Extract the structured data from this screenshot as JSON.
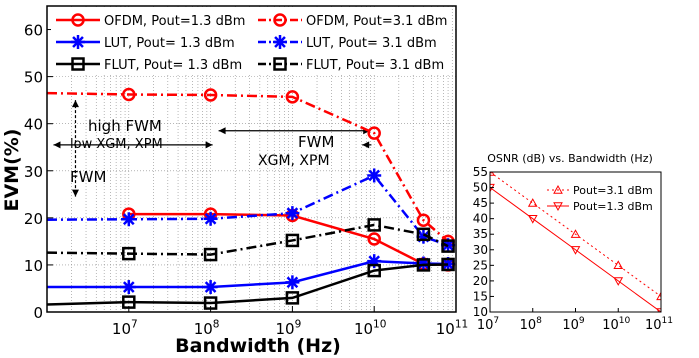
{
  "chart_data": [
    {
      "type": "line",
      "title": "",
      "xlabel": "Bandwidth (Hz)",
      "ylabel": "EVM(%)",
      "x_scale": "log",
      "xlim": [
        1000000.0,
        100000000000.0
      ],
      "ylim": [
        0,
        65
      ],
      "x_ticks": [
        10000000,
        100000000,
        1000000000,
        10000000000,
        100000000000
      ],
      "x_tick_labels": [
        {
          "base": "10",
          "exp": "7"
        },
        {
          "base": "10",
          "exp": "8"
        },
        {
          "base": "10",
          "exp": "9"
        },
        {
          "base": "10",
          "exp": "10"
        },
        {
          "base": "10",
          "exp": "11"
        }
      ],
      "y_ticks": [
        0,
        10,
        20,
        30,
        40,
        50,
        60
      ],
      "y_tick_labels": [
        "0",
        "10",
        "20",
        "30",
        "40",
        "50",
        "60"
      ],
      "grid": true,
      "legend_position": "top",
      "series": [
        {
          "name": "OFDM, Pout=1.3 dBm",
          "color": "#ff0000",
          "style": "solid",
          "marker": "circle",
          "x": [
            10000000,
            100000000,
            1000000000,
            10000000000,
            40000000000,
            80000000000
          ],
          "y": [
            20.8,
            20.8,
            20.5,
            15.5,
            10.2,
            10.0
          ]
        },
        {
          "name": "OFDM, Pout=3.1 dBm",
          "color": "#ff0000",
          "style": "dashdot",
          "marker": "circle",
          "x": [
            1000000,
            10000000,
            100000000,
            1000000000,
            10000000000,
            40000000000,
            80000000000
          ],
          "y": [
            46.5,
            46.2,
            46.1,
            45.7,
            38.0,
            19.5,
            15.0
          ]
        },
        {
          "name": "LUT, Pout= 1.3 dBm",
          "color": "#0000ff",
          "style": "solid",
          "marker": "star",
          "x": [
            1000000,
            10000000,
            100000000,
            1000000000,
            10000000000,
            40000000000,
            80000000000
          ],
          "y": [
            5.3,
            5.3,
            5.3,
            6.3,
            10.8,
            10.3,
            10.2
          ]
        },
        {
          "name": "LUT, Pout= 3.1 dBm",
          "color": "#0000ff",
          "style": "dashdot",
          "marker": "star",
          "x": [
            1000000,
            10000000,
            100000000,
            1000000000,
            10000000000,
            40000000000,
            80000000000
          ],
          "y": [
            19.6,
            19.7,
            19.8,
            21.0,
            29.0,
            16.0,
            14.2
          ]
        },
        {
          "name": "FLUT, Pout= 1.3 dBm",
          "color": "#000000",
          "style": "solid",
          "marker": "square",
          "x": [
            1000000,
            10000000,
            100000000,
            1000000000,
            10000000000,
            40000000000,
            80000000000
          ],
          "y": [
            1.6,
            2.1,
            1.9,
            3.0,
            8.8,
            10.0,
            10.1
          ]
        },
        {
          "name": "FLUT, Pout= 3.1 dBm",
          "color": "#000000",
          "style": "dashdot",
          "marker": "square",
          "x": [
            1000000,
            10000000,
            100000000,
            1000000000,
            10000000000,
            40000000000,
            80000000000
          ],
          "y": [
            12.6,
            12.4,
            12.2,
            15.2,
            18.5,
            16.5,
            14.0
          ]
        }
      ],
      "annotations": {
        "high_fwm": "high FWM",
        "low_xgm": "low XGM, XPM",
        "fwm_left": "FWM",
        "fwm_right": "FWM",
        "xgm_right": "XGM, XPM"
      }
    },
    {
      "type": "line",
      "title": "OSNR (dB) vs. Bandwidth (Hz)",
      "xlabel": "",
      "ylabel": "",
      "x_scale": "log",
      "xlim": [
        10000000.0,
        100000000000.0
      ],
      "ylim": [
        10,
        55
      ],
      "x_ticks": [
        10000000,
        100000000,
        1000000000,
        10000000000,
        100000000000
      ],
      "x_tick_labels": [
        {
          "base": "10",
          "exp": "7"
        },
        {
          "base": "10",
          "exp": "8"
        },
        {
          "base": "10",
          "exp": "9"
        },
        {
          "base": "10",
          "exp": "10"
        },
        {
          "base": "10",
          "exp": "11"
        }
      ],
      "y_ticks": [
        10,
        15,
        20,
        25,
        30,
        35,
        40,
        45,
        50,
        55
      ],
      "y_tick_labels": [
        "10",
        "15",
        "20",
        "25",
        "30",
        "35",
        "40",
        "45",
        "50",
        "55"
      ],
      "grid": false,
      "legend_position": "top-right",
      "series": [
        {
          "name": "Pout=3.1 dBm",
          "color": "#ff0000",
          "style": "dotted",
          "marker": "triangle-up",
          "x": [
            10000000,
            100000000,
            1000000000,
            10000000000,
            100000000000
          ],
          "y": [
            55,
            45,
            35,
            25,
            15
          ]
        },
        {
          "name": "Pout=1.3 dBm",
          "color": "#ff0000",
          "style": "solid",
          "marker": "triangle-down",
          "x": [
            10000000,
            100000000,
            1000000000,
            10000000000,
            100000000000
          ],
          "y": [
            50,
            40,
            30,
            20,
            10
          ]
        }
      ]
    }
  ]
}
